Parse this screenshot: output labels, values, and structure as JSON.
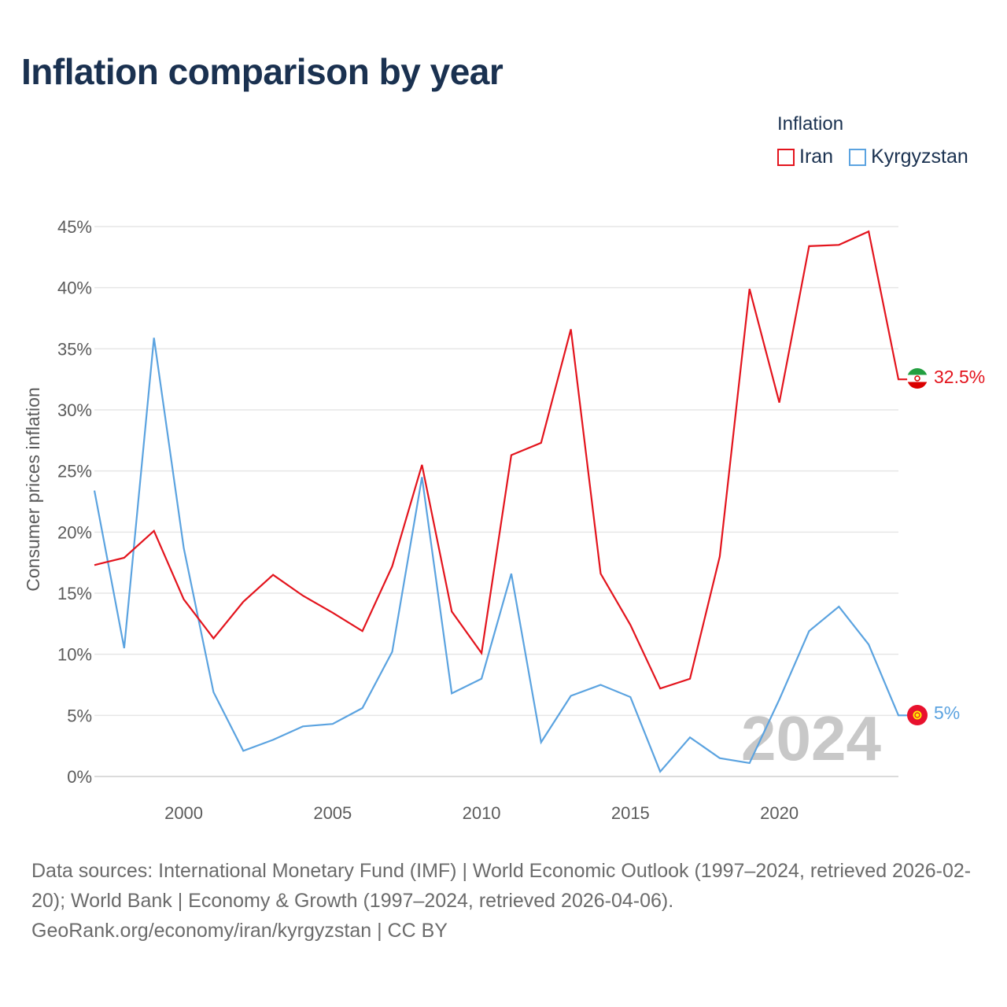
{
  "title": "Inflation comparison by year",
  "legend": {
    "title": "Inflation",
    "items": [
      {
        "label": "Iran",
        "color": "#e3141d"
      },
      {
        "label": "Kyrgyzstan",
        "color": "#5ba3e0"
      }
    ]
  },
  "year_marker": "2024",
  "end_labels": {
    "iran": "32.5%",
    "kyrgyzstan": "5%"
  },
  "source": {
    "line1": "Data sources: International Monetary Fund (IMF) | World Economic Outlook (1997–2024, retrieved 2026-02-20); World Bank | Economy & Growth (1997–2024, retrieved 2026-04-06).",
    "line2": "GeoRank.org/economy/iran/kyrgyzstan | CC BY"
  },
  "chart_data": {
    "type": "line",
    "ylabel": "Consumer prices inflation",
    "xlabel": "",
    "xlim": [
      1997,
      2024
    ],
    "ylim": [
      0,
      45
    ],
    "x_ticks": [
      2000,
      2005,
      2010,
      2015,
      2020
    ],
    "y_ticks": [
      0,
      5,
      10,
      15,
      20,
      25,
      30,
      35,
      40,
      45
    ],
    "y_tick_labels": [
      "0%",
      "5%",
      "10%",
      "15%",
      "20%",
      "25%",
      "30%",
      "35%",
      "40%",
      "45%"
    ],
    "x": [
      1997,
      1998,
      1999,
      2000,
      2001,
      2002,
      2003,
      2004,
      2005,
      2006,
      2007,
      2008,
      2009,
      2010,
      2011,
      2012,
      2013,
      2014,
      2015,
      2016,
      2017,
      2018,
      2019,
      2020,
      2021,
      2022,
      2023,
      2024
    ],
    "series": [
      {
        "name": "Iran",
        "color": "#e3141d",
        "values": [
          17.3,
          17.9,
          20.1,
          14.5,
          11.3,
          14.3,
          16.5,
          14.8,
          13.4,
          11.9,
          17.2,
          25.5,
          13.5,
          10.1,
          26.3,
          27.3,
          36.6,
          16.6,
          12.4,
          7.2,
          8.0,
          18.0,
          39.9,
          30.6,
          43.4,
          43.5,
          44.6,
          32.5
        ]
      },
      {
        "name": "Kyrgyzstan",
        "color": "#5ba3e0",
        "values": [
          23.4,
          10.5,
          35.9,
          18.7,
          6.9,
          2.1,
          3.0,
          4.1,
          4.3,
          5.6,
          10.2,
          24.5,
          6.8,
          8.0,
          16.6,
          2.8,
          6.6,
          7.5,
          6.5,
          0.4,
          3.2,
          1.5,
          1.1,
          6.3,
          11.9,
          13.9,
          10.8,
          5.0
        ]
      }
    ]
  }
}
